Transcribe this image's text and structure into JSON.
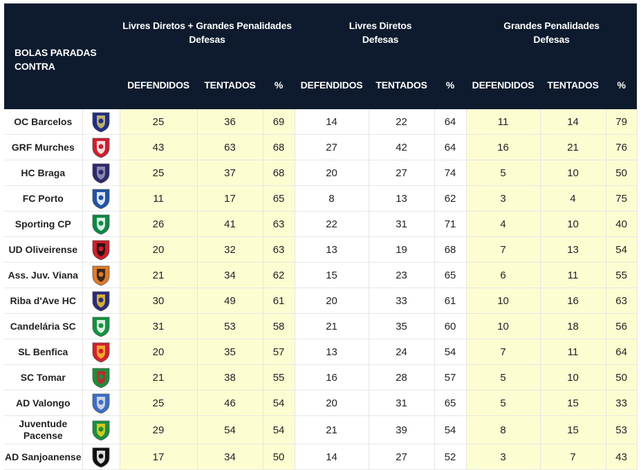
{
  "header": {
    "team_column": "BOLAS PARADAS CONTRA",
    "groups": [
      {
        "title_line1": "Livres Diretos + Grandes Penalidades",
        "title_line2": "Defesas"
      },
      {
        "title_line1": "Livres Diretos",
        "title_line2": "Defesas"
      },
      {
        "title_line1": "Grandes Penalidades",
        "title_line2": "Defesas"
      }
    ],
    "sub_columns": [
      "DEFENDIDOS",
      "TENTADOS",
      "%"
    ]
  },
  "chart_data": {
    "type": "table",
    "columns": [
      "BOLAS PARADAS CONTRA",
      "Livres Diretos + Grandes Penalidades Defesas: DEFENDIDOS",
      "TENTADOS",
      "%",
      "Livres Diretos Defesas: DEFENDIDOS",
      "TENTADOS",
      "%",
      "Grandes Penalidades Defesas: DEFENDIDOS",
      "TENTADOS",
      "%"
    ],
    "rows": [
      {
        "team": "OC Barcelos",
        "logo_colors": [
          "#1f2f86",
          "#d9c26a"
        ],
        "total": [
          "25",
          "36",
          "69"
        ],
        "livres": [
          "14",
          "22",
          "64"
        ],
        "penalidades": [
          "11",
          "14",
          "79"
        ]
      },
      {
        "team": "GRF Murches",
        "logo_colors": [
          "#d21d2b",
          "#ffffff"
        ],
        "total": [
          "43",
          "63",
          "68"
        ],
        "livres": [
          "27",
          "42",
          "64"
        ],
        "penalidades": [
          "16",
          "21",
          "76"
        ]
      },
      {
        "team": "HC Braga",
        "logo_colors": [
          "#2d2a6e",
          "#9a9ab8"
        ],
        "total": [
          "25",
          "37",
          "68"
        ],
        "livres": [
          "20",
          "27",
          "74"
        ],
        "penalidades": [
          "5",
          "10",
          "50"
        ]
      },
      {
        "team": "FC Porto",
        "logo_colors": [
          "#1f54a6",
          "#ffffff"
        ],
        "total": [
          "11",
          "17",
          "65"
        ],
        "livres": [
          "8",
          "13",
          "62"
        ],
        "penalidades": [
          "3",
          "4",
          "75"
        ]
      },
      {
        "team": "Sporting CP",
        "logo_colors": [
          "#0a8a43",
          "#ffffff"
        ],
        "total": [
          "26",
          "41",
          "63"
        ],
        "livres": [
          "22",
          "31",
          "71"
        ],
        "penalidades": [
          "4",
          "10",
          "40"
        ]
      },
      {
        "team": "UD Oliveirense",
        "logo_colors": [
          "#cf1e2a",
          "#111111"
        ],
        "total": [
          "20",
          "32",
          "63"
        ],
        "livres": [
          "13",
          "19",
          "68"
        ],
        "penalidades": [
          "7",
          "13",
          "54"
        ]
      },
      {
        "team": "Ass. Juv. Viana",
        "logo_colors": [
          "#e07b2a",
          "#1a1a1a"
        ],
        "total": [
          "21",
          "34",
          "62"
        ],
        "livres": [
          "15",
          "23",
          "65"
        ],
        "penalidades": [
          "6",
          "11",
          "55"
        ]
      },
      {
        "team": "Riba d'Ave HC",
        "logo_colors": [
          "#2b2b7a",
          "#f2c62c"
        ],
        "total": [
          "30",
          "49",
          "61"
        ],
        "livres": [
          "20",
          "33",
          "61"
        ],
        "penalidades": [
          "10",
          "16",
          "63"
        ]
      },
      {
        "team": "Candelária SC",
        "logo_colors": [
          "#13923f",
          "#ffffff"
        ],
        "total": [
          "31",
          "53",
          "58"
        ],
        "livres": [
          "21",
          "35",
          "60"
        ],
        "penalidades": [
          "10",
          "18",
          "56"
        ]
      },
      {
        "team": "SL Benfica",
        "logo_colors": [
          "#d7202c",
          "#f1c232"
        ],
        "total": [
          "20",
          "35",
          "57"
        ],
        "livres": [
          "13",
          "24",
          "54"
        ],
        "penalidades": [
          "7",
          "11",
          "64"
        ]
      },
      {
        "team": "SC Tomar",
        "logo_colors": [
          "#1a8f3c",
          "#d21d2b"
        ],
        "total": [
          "21",
          "38",
          "55"
        ],
        "livres": [
          "16",
          "28",
          "57"
        ],
        "penalidades": [
          "5",
          "10",
          "50"
        ]
      },
      {
        "team": "AD Valongo",
        "logo_colors": [
          "#3b6fc7",
          "#e5e5e5"
        ],
        "total": [
          "25",
          "46",
          "54"
        ],
        "livres": [
          "20",
          "31",
          "65"
        ],
        "penalidades": [
          "5",
          "15",
          "33"
        ]
      },
      {
        "team": "Juventude Pacense",
        "logo_colors": [
          "#1a8f3c",
          "#f2d21a"
        ],
        "total": [
          "29",
          "54",
          "54"
        ],
        "livres": [
          "21",
          "39",
          "54"
        ],
        "penalidades": [
          "8",
          "15",
          "53"
        ]
      },
      {
        "team": "AD Sanjoanense",
        "logo_colors": [
          "#111111",
          "#ffffff"
        ],
        "total": [
          "17",
          "34",
          "50"
        ],
        "livres": [
          "14",
          "27",
          "52"
        ],
        "penalidades": [
          "3",
          "7",
          "43"
        ]
      }
    ]
  }
}
